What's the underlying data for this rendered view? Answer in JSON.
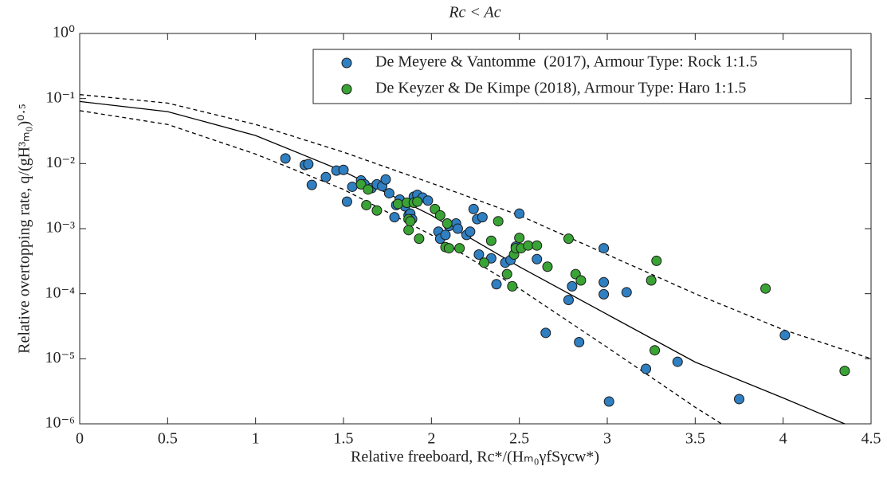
{
  "chart_data": {
    "type": "scatter",
    "title": "Rc < Ac",
    "x_label": "Relative freeboard, Rc*/(Hₘ₀γfSγcw*)",
    "y_label": "Relative overtopping rate, q/(gH³ₘ₀)⁰·⁵",
    "log_y": true,
    "legend": "upper right",
    "xlim": [
      0,
      4.5
    ],
    "xticks": [
      0,
      0.5,
      1,
      1.5,
      2,
      2.5,
      3,
      3.5,
      4,
      4.5
    ],
    "ylim": [
      1e-06,
      1
    ],
    "yticks": [
      {
        "value": 1e-06,
        "label": "10⁻⁶"
      },
      {
        "value": 1e-05,
        "label": "10⁻⁵"
      },
      {
        "value": 0.0001,
        "label": "10⁻⁴"
      },
      {
        "value": 0.001,
        "label": "10⁻³"
      },
      {
        "value": 0.01,
        "label": "10⁻²"
      },
      {
        "value": 0.1,
        "label": "10⁻¹"
      },
      {
        "value": 1,
        "label": "10⁰"
      }
    ],
    "series": [
      {
        "name": "De Meyere & Vantomme  (2017), Armour Type: Rock 1:1.5",
        "color": "#2f7fc1",
        "x": [
          1.17,
          1.28,
          1.3,
          1.32,
          1.4,
          1.46,
          1.5,
          1.52,
          1.55,
          1.6,
          1.62,
          1.66,
          1.69,
          1.72,
          1.74,
          1.76,
          1.79,
          1.8,
          1.82,
          1.85,
          1.87,
          1.88,
          1.89,
          1.9,
          1.92,
          1.95,
          1.98,
          2.04,
          2.05,
          2.08,
          2.1,
          2.14,
          2.15,
          2.2,
          2.22,
          2.24,
          2.26,
          2.29,
          2.27,
          2.34,
          2.37,
          2.42,
          2.45,
          2.48,
          2.5,
          2.6,
          2.65,
          2.78,
          2.8,
          2.84,
          2.98,
          2.98,
          2.98,
          3.01,
          3.11,
          3.22,
          3.4,
          3.75,
          4.01
        ],
        "values": [
          0.012,
          0.0095,
          0.0098,
          0.0047,
          0.0062,
          0.0078,
          0.008,
          0.0026,
          0.0044,
          0.0055,
          0.0048,
          0.0042,
          0.0048,
          0.0045,
          0.0057,
          0.0035,
          0.0015,
          0.0023,
          0.0028,
          0.0022,
          0.0016,
          0.0017,
          0.0014,
          0.0031,
          0.0033,
          0.003,
          0.0027,
          0.0009,
          0.0007,
          0.0008,
          0.0011,
          0.0012,
          0.001,
          0.0008,
          0.0009,
          0.002,
          0.0014,
          0.0015,
          0.0004,
          0.00035,
          0.00014,
          0.0003,
          0.00033,
          0.00053,
          0.0017,
          0.00034,
          2.5e-05,
          8e-05,
          0.00013,
          1.8e-05,
          0.0005,
          0.00015,
          9.8e-05,
          2.2e-06,
          0.000105,
          7e-06,
          9e-06,
          2.4e-06,
          2.3e-05
        ]
      },
      {
        "name": "De Keyzer & De Kimpe (2018), Armour Type: Haro 1:1.5",
        "color": "#3aa335",
        "x": [
          1.6,
          1.63,
          1.64,
          1.69,
          1.81,
          1.86,
          1.87,
          1.87,
          1.88,
          1.9,
          1.92,
          1.93,
          2.02,
          2.05,
          2.08,
          2.09,
          2.1,
          2.16,
          2.3,
          2.34,
          2.38,
          2.43,
          2.46,
          2.47,
          2.48,
          2.5,
          2.51,
          2.55,
          2.6,
          2.66,
          2.78,
          2.82,
          2.85,
          3.25,
          3.27,
          3.28,
          3.9,
          4.35
        ],
        "values": [
          0.0048,
          0.0023,
          0.004,
          0.0019,
          0.0024,
          0.0025,
          0.0014,
          0.00095,
          0.0013,
          0.0025,
          0.0026,
          0.0007,
          0.002,
          0.0016,
          0.00052,
          0.0012,
          0.0005,
          0.0005,
          0.0003,
          0.00065,
          0.0013,
          0.0002,
          0.00013,
          0.0004,
          0.0005,
          0.00072,
          0.0005,
          0.00055,
          0.00055,
          0.00026,
          0.0007,
          0.0002,
          0.00016,
          0.00016,
          1.35e-05,
          0.00032,
          0.00012,
          6.5e-06
        ]
      }
    ],
    "lines": [
      {
        "style": "solid",
        "color": "#000000",
        "x": [
          0,
          0.5,
          1,
          1.5,
          2,
          2.5,
          3,
          3.5,
          4,
          4.35
        ],
        "values": [
          0.09,
          0.063,
          0.027,
          0.0076,
          0.0016,
          0.00026,
          4.8e-05,
          8.9e-06,
          2.5e-06,
          1e-06
        ]
      },
      {
        "style": "dashed",
        "color": "#000000",
        "x": [
          0,
          0.5,
          1,
          1.5,
          2,
          2.5,
          3,
          3.5,
          4,
          4.5
        ],
        "values": [
          0.115,
          0.085,
          0.04,
          0.015,
          0.005,
          0.0016,
          0.0004,
          0.0001,
          2.8e-05,
          1e-05
        ]
      },
      {
        "style": "dashed",
        "color": "#000000",
        "x": [
          0,
          0.5,
          1,
          1.5,
          2,
          2.5,
          3,
          3.5,
          3.65
        ],
        "values": [
          0.065,
          0.04,
          0.014,
          0.004,
          0.0008,
          0.00012,
          1.5e-05,
          1.8e-06,
          1e-06
        ]
      }
    ]
  }
}
